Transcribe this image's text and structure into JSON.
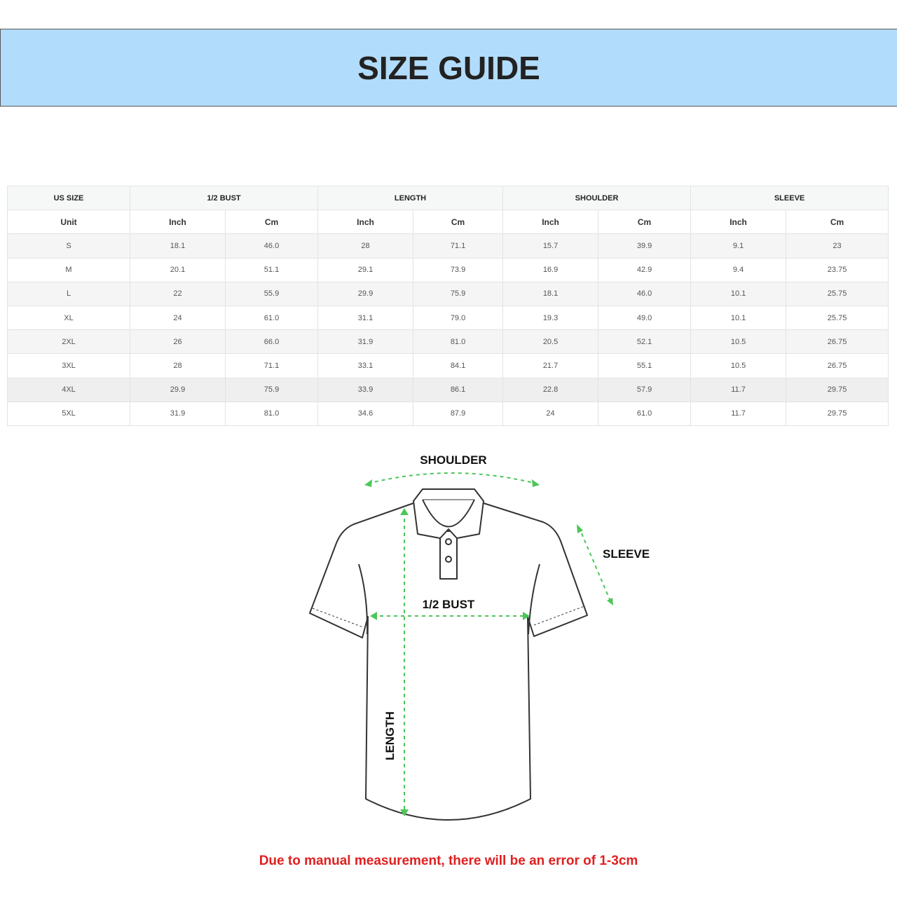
{
  "title": "SIZE GUIDE",
  "table": {
    "groups": [
      "US SIZE",
      "1/2 BUST",
      "LENGTH",
      "SHOULDER",
      "SLEEVE"
    ],
    "units": [
      "Unit",
      "Inch",
      "Cm",
      "Inch",
      "Cm",
      "Inch",
      "Cm",
      "Inch",
      "Cm"
    ],
    "rows": [
      [
        "S",
        "18.1",
        "46.0",
        "28",
        "71.1",
        "15.7",
        "39.9",
        "9.1",
        "23"
      ],
      [
        "M",
        "20.1",
        "51.1",
        "29.1",
        "73.9",
        "16.9",
        "42.9",
        "9.4",
        "23.75"
      ],
      [
        "L",
        "22",
        "55.9",
        "29.9",
        "75.9",
        "18.1",
        "46.0",
        "10.1",
        "25.75"
      ],
      [
        "XL",
        "24",
        "61.0",
        "31.1",
        "79.0",
        "19.3",
        "49.0",
        "10.1",
        "25.75"
      ],
      [
        "2XL",
        "26",
        "66.0",
        "31.9",
        "81.0",
        "20.5",
        "52.1",
        "10.5",
        "26.75"
      ],
      [
        "3XL",
        "28",
        "71.1",
        "33.1",
        "84.1",
        "21.7",
        "55.1",
        "10.5",
        "26.75"
      ],
      [
        "4XL",
        "29.9",
        "75.9",
        "33.9",
        "86.1",
        "22.8",
        "57.9",
        "11.7",
        "29.75"
      ],
      [
        "5XL",
        "31.9",
        "81.0",
        "34.6",
        "87.9",
        "24",
        "61.0",
        "11.7",
        "29.75"
      ]
    ]
  },
  "diagram": {
    "shoulder": "SHOULDER",
    "sleeve": "SLEEVE",
    "bust": "1/2 BUST",
    "length": "LENGTH",
    "arrow_color": "#4cc75a"
  },
  "note": "Due to manual measurement, there will be an error of 1-3cm"
}
